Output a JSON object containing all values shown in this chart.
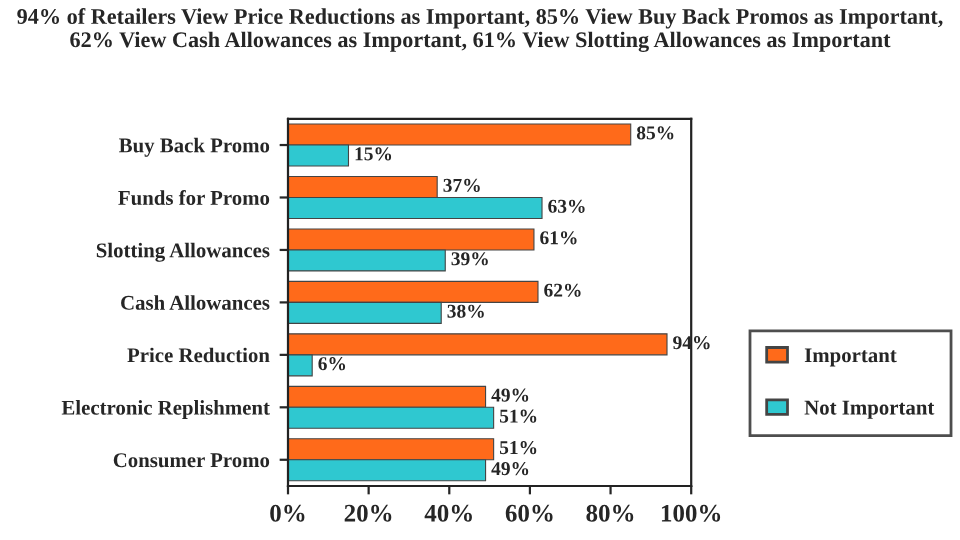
{
  "chart_data": {
    "type": "bar",
    "orientation": "horizontal",
    "title": "94% of Retailers View Price Reductions as Important, 85% View Buy Back Promos as Important, 62% View Cash Allowances as Important, 61% View Slotting Allowances as Important",
    "categories": [
      "Buy Back Promo",
      "Funds for Promo",
      "Slotting Allowances",
      "Cash Allowances",
      "Price Reduction",
      "Electronic Replishment",
      "Consumer Promo"
    ],
    "series": [
      {
        "name": "Important",
        "color": "#ff6a1a",
        "values": [
          85,
          37,
          61,
          62,
          94,
          49,
          51
        ],
        "value_labels": [
          "85%",
          "37%",
          "61%",
          "62%",
          "94%",
          "49%",
          "51%"
        ]
      },
      {
        "name": "Not Important",
        "color": "#2fc8d0",
        "values": [
          15,
          63,
          39,
          38,
          6,
          51,
          49
        ],
        "value_labels": [
          "15%",
          "63%",
          "39%",
          "38%",
          "6%",
          "51%",
          "49%"
        ]
      }
    ],
    "xlim": [
      0,
      100
    ],
    "xticks": [
      {
        "value": 0,
        "label": "0%"
      },
      {
        "value": 20,
        "label": "20%"
      },
      {
        "value": 40,
        "label": "40%"
      },
      {
        "value": 60,
        "label": "60%"
      },
      {
        "value": 80,
        "label": "80%"
      },
      {
        "value": 100,
        "label": "100%"
      }
    ],
    "grid": false,
    "legend": "right"
  }
}
